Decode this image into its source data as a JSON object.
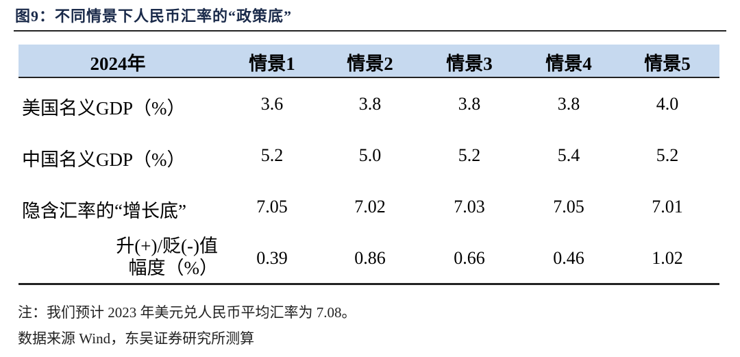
{
  "header": {
    "title": "图9：不同情景下人民币汇率的“政策底”"
  },
  "table": {
    "columns": [
      "2024年",
      "情景1",
      "情景2",
      "情景3",
      "情景4",
      "情景5"
    ],
    "rows": [
      {
        "label": [
          "美国名义GDP（%）"
        ],
        "values": [
          "3.6",
          "3.8",
          "3.8",
          "3.8",
          "4.0"
        ]
      },
      {
        "label": [
          "中国名义GDP（%）"
        ],
        "values": [
          "5.2",
          "5.0",
          "5.2",
          "5.4",
          "5.2"
        ]
      },
      {
        "label": [
          "隐含汇率的“增长底”"
        ],
        "values": [
          "7.05",
          "7.02",
          "7.03",
          "7.05",
          "7.01"
        ]
      },
      {
        "label": [
          "升(+)/贬(-)值",
          "幅度（%）"
        ],
        "values": [
          "0.39",
          "0.86",
          "0.66",
          "0.46",
          "1.02"
        ]
      }
    ]
  },
  "notes": [
    "注：我们预计 2023 年美元兑人民币平均汇率为 7.08。",
    "数据来源 Wind，东吴证券研究所测算"
  ]
}
